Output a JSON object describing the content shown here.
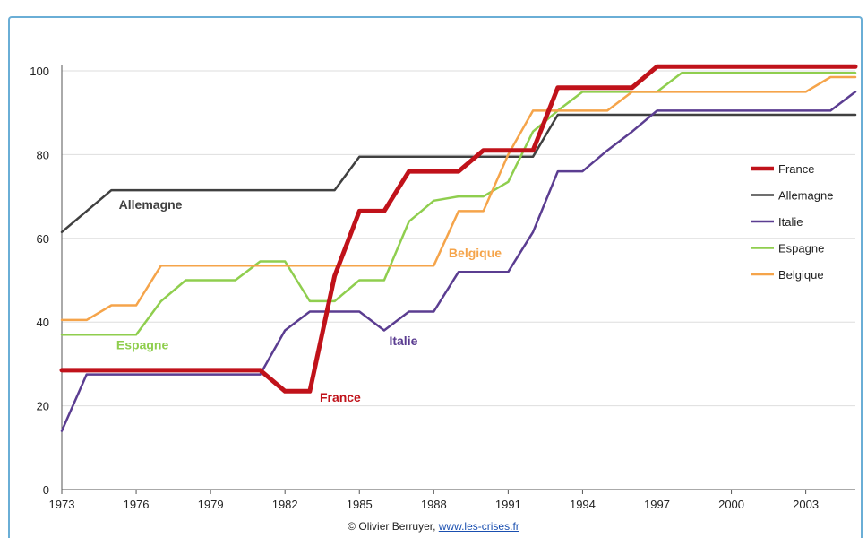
{
  "chart_data": {
    "type": "line",
    "x": [
      1973,
      1974,
      1975,
      1976,
      1977,
      1978,
      1979,
      1980,
      1981,
      1982,
      1983,
      1984,
      1985,
      1986,
      1987,
      1988,
      1989,
      1990,
      1991,
      1992,
      1993,
      1994,
      1995,
      1996,
      1997,
      1998,
      1999,
      2000,
      2001,
      2002,
      2003,
      2004,
      2005
    ],
    "x_ticks": [
      "1973",
      "1976",
      "1979",
      "1982",
      "1985",
      "1988",
      "1991",
      "1994",
      "1997",
      "2000",
      "2003"
    ],
    "y_ticks": [
      "0",
      "20",
      "40",
      "60",
      "80",
      "100"
    ],
    "ylim": [
      0,
      100
    ],
    "xlim": [
      1973,
      2005
    ],
    "grid": true,
    "legend_position": "right",
    "series": [
      {
        "name": "France",
        "color": "#c0121a",
        "width": 5,
        "values": [
          28.5,
          28.5,
          28.5,
          28.5,
          28.5,
          28.5,
          28.5,
          28.5,
          28.5,
          23.5,
          23.5,
          51,
          66.5,
          66.5,
          76,
          76,
          76,
          81,
          81,
          81,
          96,
          96,
          96,
          96,
          101,
          101,
          101,
          101,
          101,
          101,
          101,
          101,
          101
        ]
      },
      {
        "name": "Allemagne",
        "color": "#404040",
        "width": 2.5,
        "values": [
          61.5,
          66.5,
          71.5,
          71.5,
          71.5,
          71.5,
          71.5,
          71.5,
          71.5,
          71.5,
          71.5,
          71.5,
          79.5,
          79.5,
          79.5,
          79.5,
          79.5,
          79.5,
          79.5,
          79.5,
          89.5,
          89.5,
          89.5,
          89.5,
          89.5,
          89.5,
          89.5,
          89.5,
          89.5,
          89.5,
          89.5,
          89.5,
          89.5
        ]
      },
      {
        "name": "Italie",
        "color": "#5b3d91",
        "width": 2.5,
        "values": [
          14,
          27.5,
          27.5,
          27.5,
          27.5,
          27.5,
          27.5,
          27.5,
          27.5,
          38,
          42.5,
          42.5,
          42.5,
          38,
          42.5,
          42.5,
          52,
          52,
          52,
          61.5,
          76,
          76,
          81,
          85.5,
          90.5,
          90.5,
          90.5,
          90.5,
          90.5,
          90.5,
          90.5,
          90.5,
          95
        ]
      },
      {
        "name": "Espagne",
        "color": "#8fce4e",
        "width": 2.5,
        "values": [
          37,
          37,
          37,
          37,
          45,
          50,
          50,
          50,
          54.5,
          54.5,
          45,
          45,
          50,
          50,
          64,
          69,
          70,
          70,
          73.5,
          85.5,
          90.5,
          95,
          95,
          95,
          95,
          99.5,
          99.5,
          99.5,
          99.5,
          99.5,
          99.5,
          99.5,
          99.5
        ]
      },
      {
        "name": "Belgique",
        "color": "#f5a44a",
        "width": 2.5,
        "values": [
          40.5,
          40.5,
          44,
          44,
          53.5,
          53.5,
          53.5,
          53.5,
          53.5,
          53.5,
          53.5,
          53.5,
          53.5,
          53.5,
          53.5,
          53.5,
          66.5,
          66.5,
          80,
          90.5,
          90.5,
          90.5,
          90.5,
          95,
          95,
          95,
          95,
          95,
          95,
          95,
          95,
          98.5,
          98.5
        ]
      }
    ],
    "annotations": [
      {
        "text": "Allemagne",
        "series": "Allemagne",
        "x": 1975.3,
        "y": 67,
        "color": "#404040"
      },
      {
        "text": "Espagne",
        "series": "Espagne",
        "x": 1975.2,
        "y": 33.5,
        "color": "#8fce4e"
      },
      {
        "text": "France",
        "series": "France",
        "x": 1983.4,
        "y": 21,
        "color": "#c0121a"
      },
      {
        "text": "Italie",
        "series": "Italie",
        "x": 1986.2,
        "y": 34.5,
        "color": "#5b3d91"
      },
      {
        "text": "Belgique",
        "series": "Belgique",
        "x": 1988.6,
        "y": 55.5,
        "color": "#f5a44a"
      }
    ]
  },
  "credit": {
    "author": "© Olivier Berruyer,",
    "site": "www.les-crises.fr"
  }
}
